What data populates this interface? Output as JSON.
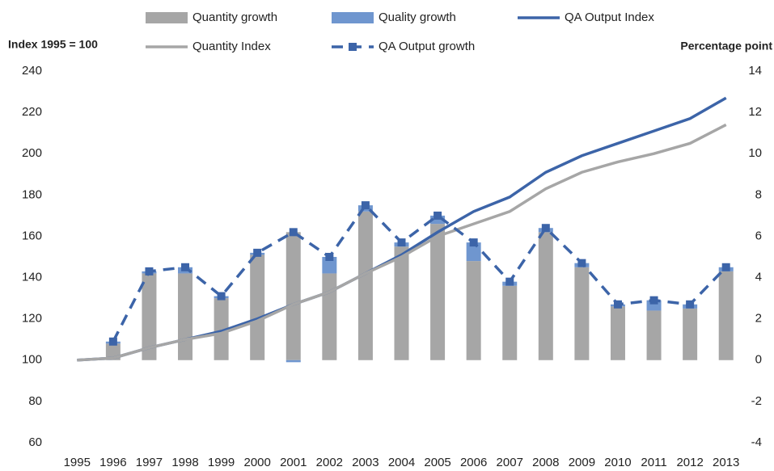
{
  "chart_data": {
    "type": "bar",
    "ylabel": "Index 1995 = 100",
    "y2label": "Percentage point",
    "categories": [
      "1995",
      "1996",
      "1997",
      "1998",
      "1999",
      "2000",
      "2001",
      "2002",
      "2003",
      "2004",
      "2005",
      "2006",
      "2007",
      "2008",
      "2009",
      "2010",
      "2011",
      "2012",
      "2013"
    ],
    "ylim": [
      60,
      240
    ],
    "yticks": [
      60,
      80,
      100,
      120,
      140,
      160,
      180,
      200,
      220,
      240
    ],
    "y2lim": [
      -4,
      14
    ],
    "y2ticks": [
      -4,
      -2,
      0,
      2,
      4,
      6,
      8,
      10,
      12,
      14
    ],
    "series": [
      {
        "name": "Quantity growth",
        "kind": "bar",
        "axis": "y2",
        "color": "#a6a6a6",
        "values": [
          null,
          0.8,
          4.2,
          4.2,
          3.0,
          5.1,
          6.2,
          4.2,
          7.2,
          5.5,
          6.6,
          4.8,
          3.6,
          6.2,
          4.5,
          2.6,
          2.4,
          2.5,
          4.3
        ]
      },
      {
        "name": "Quality growth",
        "kind": "bar",
        "axis": "y2",
        "color": "#6f96cf",
        "values": [
          null,
          0.1,
          0.1,
          0.3,
          0.1,
          0.1,
          -0.1,
          0.8,
          0.3,
          0.2,
          0.4,
          0.9,
          0.2,
          0.2,
          0.2,
          0.1,
          0.5,
          0.2,
          0.2
        ]
      },
      {
        "name": "QA Output Index",
        "kind": "line",
        "color": "#3c64a8",
        "values": [
          100,
          101,
          106,
          110,
          114,
          120,
          127,
          133,
          142,
          151,
          162,
          172,
          179,
          191,
          199,
          205,
          211,
          217,
          227
        ]
      },
      {
        "name": "Quantity Index",
        "kind": "line",
        "color": "#a6a6a6",
        "values": [
          100,
          101,
          106,
          110,
          113,
          119,
          127,
          133,
          142,
          150,
          160,
          166,
          172,
          183,
          191,
          196,
          200,
          205,
          214
        ]
      },
      {
        "name": "QA Output growth",
        "kind": "line",
        "axis": "y2",
        "dashed": true,
        "marker": "square",
        "color": "#3c64a8",
        "values": [
          null,
          0.9,
          4.3,
          4.5,
          3.1,
          5.2,
          6.2,
          5.0,
          7.5,
          5.7,
          7.0,
          5.7,
          3.8,
          6.4,
          4.7,
          2.7,
          2.9,
          2.7,
          4.5
        ]
      }
    ]
  }
}
